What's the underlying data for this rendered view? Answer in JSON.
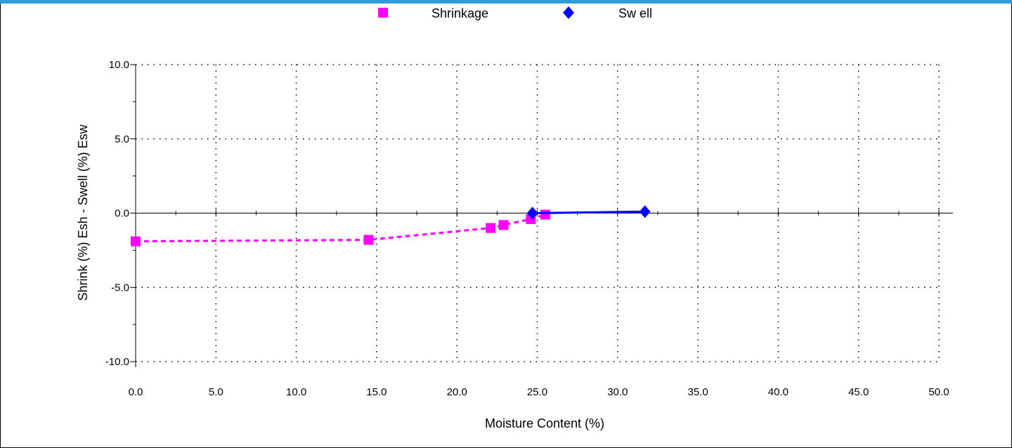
{
  "chart_data": {
    "type": "line",
    "xlabel": "Moisture Content (%)",
    "ylabel": "Shrink (%) Esh - Swell (%) Esw",
    "xlim": [
      0,
      50
    ],
    "ylim": [
      -10,
      10
    ],
    "x_ticks": [
      "0.0",
      "5.0",
      "10.0",
      "15.0",
      "20.0",
      "25.0",
      "30.0",
      "35.0",
      "40.0",
      "45.0",
      "50.0"
    ],
    "y_ticks": [
      "10.0",
      "5.0",
      "0.0",
      "-5.0",
      "-10.0"
    ],
    "grid": true,
    "legend_position": "top",
    "series": [
      {
        "name": "Shrinkage",
        "color": "#ff00ff",
        "marker": "square",
        "line_style": "dashed",
        "x": [
          0.0,
          14.5,
          22.1,
          22.9,
          24.6,
          25.5
        ],
        "y": [
          -1.9,
          -1.8,
          -1.0,
          -0.8,
          -0.4,
          -0.1
        ]
      },
      {
        "name": "Sw ell",
        "color": "#0000ff",
        "marker": "diamond",
        "line_style": "solid",
        "x": [
          24.7,
          31.7
        ],
        "y": [
          0.0,
          0.1
        ]
      }
    ]
  }
}
